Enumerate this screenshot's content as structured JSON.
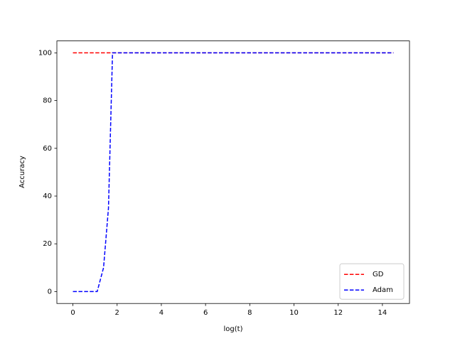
{
  "chart_data": {
    "type": "line",
    "xlabel": "log(t)",
    "ylabel": "Accuracy",
    "series": [
      {
        "name": "GD",
        "color": "#ff0000",
        "x": [
          0,
          14.5
        ],
        "values": [
          100,
          100
        ]
      },
      {
        "name": "Adam",
        "color": "#0000ff",
        "x": [
          0,
          0.693,
          1.099,
          1.386,
          1.609,
          1.792,
          14.5
        ],
        "values": [
          0,
          0,
          0,
          10,
          35,
          100,
          100
        ]
      }
    ],
    "xlim": [
      -0.725,
      15.225
    ],
    "xticks": [
      0,
      2,
      4,
      6,
      8,
      10,
      12,
      14
    ],
    "ylim": [
      -5,
      105
    ],
    "yticks": [
      0,
      20,
      40,
      60,
      80,
      100
    ],
    "grid": false,
    "legend": "lower right"
  }
}
